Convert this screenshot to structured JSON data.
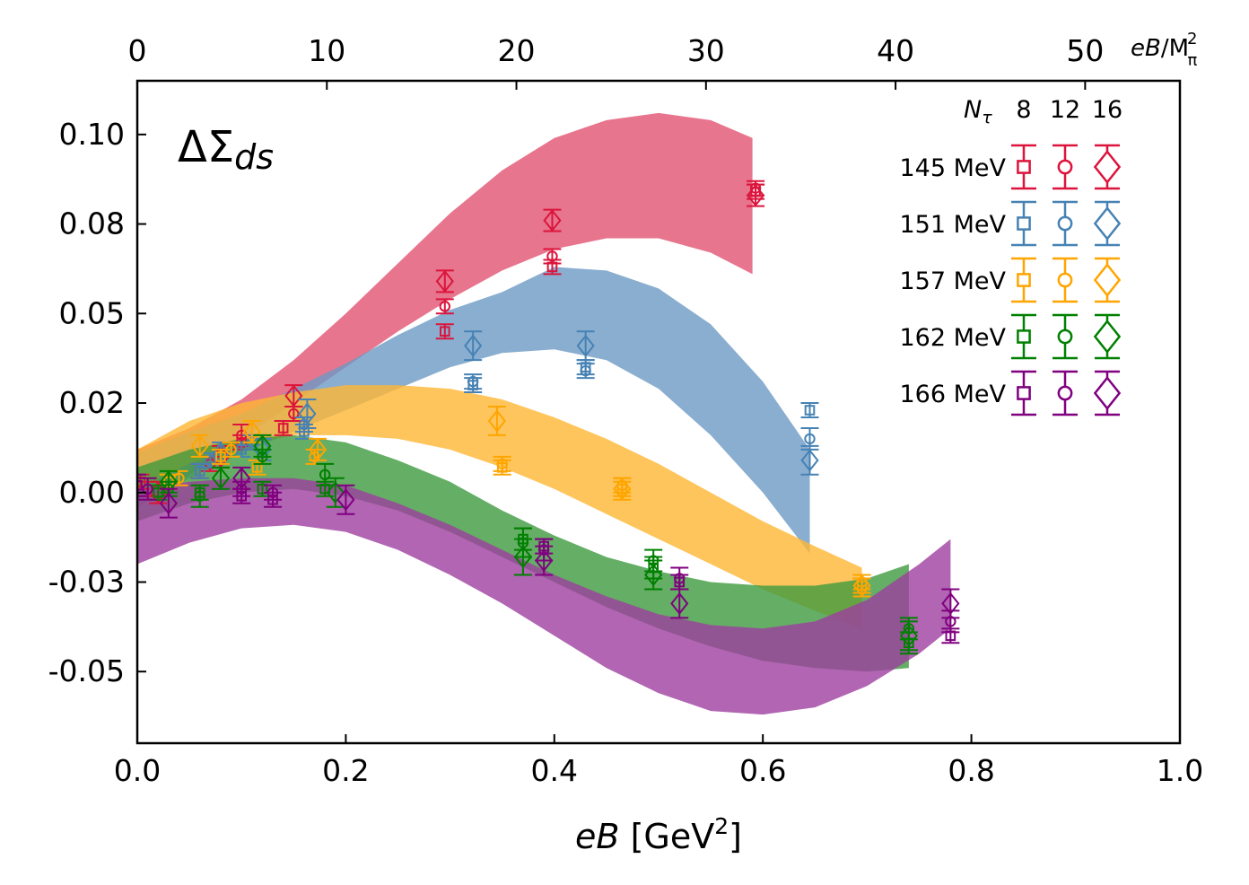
{
  "chart_data": {
    "type": "scatter",
    "title": "",
    "annotation": {
      "base": "ΔΣ",
      "sub": "ds"
    },
    "xlabel": {
      "italic": "eB",
      "rest": " [GeV",
      "sup": "2",
      "close": "]"
    },
    "top_xlabel": {
      "italic": "eB",
      "rest": "/M",
      "sup": "2",
      "sub": "π"
    },
    "xlim": [
      0,
      1.0
    ],
    "ylim": [
      -0.07,
      0.115
    ],
    "top_xlim": [
      0,
      55
    ],
    "x_ticks": [
      {
        "v": 0.0,
        "label": "0.0"
      },
      {
        "v": 0.2,
        "label": "0.2"
      },
      {
        "v": 0.4,
        "label": "0.4"
      },
      {
        "v": 0.6,
        "label": "0.6"
      },
      {
        "v": 0.8,
        "label": "0.8"
      },
      {
        "v": 1.0,
        "label": "1.0"
      }
    ],
    "y_ticks": [
      {
        "v": 0.1,
        "label": "0.10"
      },
      {
        "v": 0.075,
        "label": "0.08"
      },
      {
        "v": 0.05,
        "label": "0.05"
      },
      {
        "v": 0.025,
        "label": "0.02"
      },
      {
        "v": 0.0,
        "label": "0.00"
      },
      {
        "v": -0.025,
        "label": "-0.03"
      },
      {
        "v": -0.05,
        "label": "-0.05"
      }
    ],
    "top_ticks": [
      {
        "v": 0,
        "label": "0"
      },
      {
        "v": 10,
        "label": "10"
      },
      {
        "v": 20,
        "label": "20"
      },
      {
        "v": 30,
        "label": "30"
      },
      {
        "v": 40,
        "label": "40"
      },
      {
        "v": 50,
        "label": "50"
      }
    ],
    "legend": {
      "position": "top-right",
      "header": {
        "symbol": "N",
        "sub": "τ",
        "values": [
          "8",
          "12",
          "16"
        ]
      },
      "markers": [
        "square",
        "circle",
        "diamond"
      ]
    },
    "series": [
      {
        "name": "145 MeV",
        "color": "#dc143c",
        "band_color": "#e15270",
        "band": {
          "x": [
            0.0,
            0.05,
            0.1,
            0.15,
            0.2,
            0.25,
            0.3,
            0.35,
            0.4,
            0.45,
            0.5,
            0.55,
            0.59
          ],
          "lo": [
            -0.004,
            0.005,
            0.015,
            0.025,
            0.035,
            0.045,
            0.054,
            0.062,
            0.068,
            0.071,
            0.071,
            0.067,
            0.061
          ],
          "hi": [
            0.012,
            0.018,
            0.026,
            0.037,
            0.05,
            0.064,
            0.078,
            0.09,
            0.099,
            0.104,
            0.106,
            0.104,
            0.099
          ]
        },
        "points": [
          {
            "m": "square",
            "x": 0.003,
            "y": 0.003,
            "e": 0.002
          },
          {
            "m": "circle",
            "x": 0.01,
            "y": 0.001,
            "e": 0.002
          },
          {
            "m": "diamond",
            "x": 0.02,
            "y": 0.0,
            "e": 0.003
          },
          {
            "m": "square",
            "x": 0.06,
            "y": 0.006,
            "e": 0.002
          },
          {
            "m": "circle",
            "x": 0.07,
            "y": 0.008,
            "e": 0.002
          },
          {
            "m": "diamond",
            "x": 0.08,
            "y": 0.01,
            "e": 0.003
          },
          {
            "m": "square",
            "x": 0.1,
            "y": 0.014,
            "e": 0.002
          },
          {
            "m": "circle",
            "x": 0.1,
            "y": 0.016,
            "e": 0.003
          },
          {
            "m": "square",
            "x": 0.14,
            "y": 0.018,
            "e": 0.002
          },
          {
            "m": "circle",
            "x": 0.15,
            "y": 0.022,
            "e": 0.002
          },
          {
            "m": "diamond",
            "x": 0.15,
            "y": 0.027,
            "e": 0.003
          },
          {
            "m": "square",
            "x": 0.295,
            "y": 0.045,
            "e": 0.002
          },
          {
            "m": "circle",
            "x": 0.295,
            "y": 0.052,
            "e": 0.002
          },
          {
            "m": "diamond",
            "x": 0.295,
            "y": 0.059,
            "e": 0.003
          },
          {
            "m": "square",
            "x": 0.398,
            "y": 0.063,
            "e": 0.002
          },
          {
            "m": "circle",
            "x": 0.398,
            "y": 0.066,
            "e": 0.002
          },
          {
            "m": "diamond",
            "x": 0.398,
            "y": 0.076,
            "e": 0.003
          },
          {
            "m": "square",
            "x": 0.593,
            "y": 0.084,
            "e": 0.002
          },
          {
            "m": "circle",
            "x": 0.593,
            "y": 0.085,
            "e": 0.002
          },
          {
            "m": "diamond",
            "x": 0.593,
            "y": 0.083,
            "e": 0.003
          }
        ]
      },
      {
        "name": "151 MeV",
        "color": "#4682b4",
        "band_color": "#6d9ac4",
        "band": {
          "x": [
            0.0,
            0.05,
            0.1,
            0.15,
            0.2,
            0.25,
            0.3,
            0.35,
            0.4,
            0.45,
            0.5,
            0.55,
            0.6,
            0.645
          ],
          "lo": [
            -0.004,
            0.004,
            0.011,
            0.017,
            0.023,
            0.029,
            0.035,
            0.039,
            0.04,
            0.037,
            0.029,
            0.016,
            0.0,
            -0.017
          ],
          "hi": [
            0.011,
            0.017,
            0.022,
            0.029,
            0.036,
            0.044,
            0.051,
            0.056,
            0.063,
            0.062,
            0.057,
            0.047,
            0.031,
            0.012
          ]
        },
        "points": [
          {
            "m": "square",
            "x": 0.06,
            "y": 0.006,
            "e": 0.002
          },
          {
            "m": "circle",
            "x": 0.07,
            "y": 0.009,
            "e": 0.002
          },
          {
            "m": "diamond",
            "x": 0.08,
            "y": 0.011,
            "e": 0.003
          },
          {
            "m": "square",
            "x": 0.1,
            "y": 0.012,
            "e": 0.002
          },
          {
            "m": "circle",
            "x": 0.11,
            "y": 0.014,
            "e": 0.002
          },
          {
            "m": "diamond",
            "x": 0.12,
            "y": 0.012,
            "e": 0.003
          },
          {
            "m": "square",
            "x": 0.16,
            "y": 0.017,
            "e": 0.002
          },
          {
            "m": "circle",
            "x": 0.16,
            "y": 0.019,
            "e": 0.002
          },
          {
            "m": "diamond",
            "x": 0.163,
            "y": 0.022,
            "e": 0.004
          },
          {
            "m": "square",
            "x": 0.322,
            "y": 0.03,
            "e": 0.002
          },
          {
            "m": "circle",
            "x": 0.322,
            "y": 0.031,
            "e": 0.002
          },
          {
            "m": "diamond",
            "x": 0.322,
            "y": 0.041,
            "e": 0.004
          },
          {
            "m": "square",
            "x": 0.43,
            "y": 0.035,
            "e": 0.002
          },
          {
            "m": "circle",
            "x": 0.43,
            "y": 0.034,
            "e": 0.002
          },
          {
            "m": "diamond",
            "x": 0.43,
            "y": 0.041,
            "e": 0.004
          },
          {
            "m": "square",
            "x": 0.645,
            "y": 0.023,
            "e": 0.002
          },
          {
            "m": "circle",
            "x": 0.645,
            "y": 0.015,
            "e": 0.003
          },
          {
            "m": "diamond",
            "x": 0.645,
            "y": 0.009,
            "e": 0.004
          }
        ]
      },
      {
        "name": "157 MeV",
        "color": "#ffa500",
        "band_color": "#feb733",
        "band": {
          "x": [
            0.0,
            0.05,
            0.1,
            0.15,
            0.2,
            0.25,
            0.3,
            0.35,
            0.4,
            0.45,
            0.5,
            0.55,
            0.6,
            0.65,
            0.695
          ],
          "lo": [
            0.001,
            0.008,
            0.013,
            0.016,
            0.016,
            0.015,
            0.012,
            0.007,
            0.001,
            -0.006,
            -0.013,
            -0.02,
            -0.027,
            -0.033,
            -0.038
          ],
          "hi": [
            0.012,
            0.02,
            0.025,
            0.028,
            0.03,
            0.03,
            0.029,
            0.026,
            0.021,
            0.015,
            0.008,
            0.0,
            -0.008,
            -0.015,
            -0.021
          ]
        },
        "points": [
          {
            "m": "square",
            "x": 0.03,
            "y": 0.003,
            "e": 0.002
          },
          {
            "m": "circle",
            "x": 0.04,
            "y": 0.004,
            "e": 0.002
          },
          {
            "m": "diamond",
            "x": 0.06,
            "y": 0.013,
            "e": 0.003
          },
          {
            "m": "square",
            "x": 0.08,
            "y": 0.01,
            "e": 0.002
          },
          {
            "m": "circle",
            "x": 0.09,
            "y": 0.012,
            "e": 0.002
          },
          {
            "m": "diamond",
            "x": 0.11,
            "y": 0.017,
            "e": 0.003
          },
          {
            "m": "square",
            "x": 0.115,
            "y": 0.007,
            "e": 0.002
          },
          {
            "m": "circle",
            "x": 0.17,
            "y": 0.01,
            "e": 0.002
          },
          {
            "m": "diamond",
            "x": 0.173,
            "y": 0.012,
            "e": 0.003
          },
          {
            "m": "square",
            "x": 0.35,
            "y": 0.007,
            "e": 0.002
          },
          {
            "m": "circle",
            "x": 0.35,
            "y": 0.008,
            "e": 0.002
          },
          {
            "m": "diamond",
            "x": 0.345,
            "y": 0.02,
            "e": 0.004
          },
          {
            "m": "square",
            "x": 0.465,
            "y": 0.001,
            "e": 0.002
          },
          {
            "m": "circle",
            "x": 0.465,
            "y": 0.002,
            "e": 0.002
          },
          {
            "m": "diamond",
            "x": 0.465,
            "y": 0.001,
            "e": 0.003
          },
          {
            "m": "square",
            "x": 0.695,
            "y": -0.026,
            "e": 0.002
          },
          {
            "m": "circle",
            "x": 0.695,
            "y": -0.025,
            "e": 0.002
          },
          {
            "m": "diamond",
            "x": 0.695,
            "y": -0.026,
            "e": 0.003
          }
        ]
      },
      {
        "name": "162 MeV",
        "color": "#008000",
        "band_color": "#3f9a3f",
        "band": {
          "x": [
            0.0,
            0.05,
            0.1,
            0.15,
            0.2,
            0.25,
            0.3,
            0.35,
            0.4,
            0.45,
            0.5,
            0.55,
            0.6,
            0.65,
            0.7,
            0.74
          ],
          "lo": [
            -0.008,
            -0.003,
            0.0,
            0.001,
            -0.001,
            -0.005,
            -0.011,
            -0.018,
            -0.025,
            -0.032,
            -0.038,
            -0.043,
            -0.047,
            -0.049,
            -0.05,
            -0.049
          ],
          "hi": [
            0.007,
            0.012,
            0.015,
            0.016,
            0.014,
            0.009,
            0.003,
            -0.005,
            -0.012,
            -0.018,
            -0.022,
            -0.025,
            -0.026,
            -0.026,
            -0.024,
            -0.02
          ]
        },
        "points": [
          {
            "m": "square",
            "x": 0.02,
            "y": 0.0,
            "e": 0.002
          },
          {
            "m": "circle",
            "x": 0.03,
            "y": 0.001,
            "e": 0.002
          },
          {
            "m": "diamond",
            "x": 0.03,
            "y": 0.003,
            "e": 0.003
          },
          {
            "m": "square",
            "x": 0.06,
            "y": 0.0,
            "e": 0.002
          },
          {
            "m": "circle",
            "x": 0.06,
            "y": -0.001,
            "e": 0.003
          },
          {
            "m": "diamond",
            "x": 0.08,
            "y": 0.004,
            "e": 0.003
          },
          {
            "m": "square",
            "x": 0.12,
            "y": 0.001,
            "e": 0.002
          },
          {
            "m": "circle",
            "x": 0.12,
            "y": 0.01,
            "e": 0.002
          },
          {
            "m": "diamond",
            "x": 0.12,
            "y": 0.013,
            "e": 0.003
          },
          {
            "m": "square",
            "x": 0.18,
            "y": 0.001,
            "e": 0.002
          },
          {
            "m": "circle",
            "x": 0.18,
            "y": 0.005,
            "e": 0.003
          },
          {
            "m": "diamond",
            "x": 0.19,
            "y": 0.0,
            "e": 0.004
          },
          {
            "m": "square",
            "x": 0.37,
            "y": -0.013,
            "e": 0.003
          },
          {
            "m": "circle",
            "x": 0.37,
            "y": -0.014,
            "e": 0.004
          },
          {
            "m": "diamond",
            "x": 0.37,
            "y": -0.018,
            "e": 0.005
          },
          {
            "m": "square",
            "x": 0.495,
            "y": -0.021,
            "e": 0.003
          },
          {
            "m": "circle",
            "x": 0.495,
            "y": -0.019,
            "e": 0.003
          },
          {
            "m": "diamond",
            "x": 0.495,
            "y": -0.023,
            "e": 0.004
          },
          {
            "m": "square",
            "x": 0.74,
            "y": -0.042,
            "e": 0.003
          },
          {
            "m": "circle",
            "x": 0.74,
            "y": -0.038,
            "e": 0.003
          },
          {
            "m": "diamond",
            "x": 0.74,
            "y": -0.04,
            "e": 0.004
          }
        ]
      },
      {
        "name": "166 MeV",
        "color": "#800080",
        "band_color": "#9e3f9f",
        "band": {
          "x": [
            0.0,
            0.05,
            0.1,
            0.15,
            0.2,
            0.25,
            0.3,
            0.35,
            0.4,
            0.45,
            0.5,
            0.55,
            0.6,
            0.65,
            0.7,
            0.75,
            0.78
          ],
          "lo": [
            -0.02,
            -0.014,
            -0.01,
            -0.009,
            -0.011,
            -0.016,
            -0.023,
            -0.031,
            -0.04,
            -0.049,
            -0.056,
            -0.061,
            -0.062,
            -0.06,
            -0.054,
            -0.045,
            -0.038
          ],
          "hi": [
            0.001,
            0.003,
            0.004,
            0.004,
            0.002,
            -0.003,
            -0.009,
            -0.016,
            -0.023,
            -0.029,
            -0.034,
            -0.037,
            -0.038,
            -0.036,
            -0.03,
            -0.02,
            -0.013
          ]
        },
        "points": [
          {
            "m": "square",
            "x": 0.0,
            "y": 0.002,
            "e": 0.003
          },
          {
            "m": "circle",
            "x": 0.01,
            "y": 0.001,
            "e": 0.003
          },
          {
            "m": "diamond",
            "x": 0.03,
            "y": -0.003,
            "e": 0.004
          },
          {
            "m": "square",
            "x": 0.1,
            "y": -0.001,
            "e": 0.002
          },
          {
            "m": "circle",
            "x": 0.1,
            "y": 0.001,
            "e": 0.002
          },
          {
            "m": "diamond",
            "x": 0.1,
            "y": 0.004,
            "e": 0.003
          },
          {
            "m": "square",
            "x": 0.13,
            "y": -0.002,
            "e": 0.002
          },
          {
            "m": "circle",
            "x": 0.13,
            "y": 0.0,
            "e": 0.002
          },
          {
            "m": "diamond",
            "x": 0.2,
            "y": -0.002,
            "e": 0.004
          },
          {
            "m": "square",
            "x": 0.39,
            "y": -0.015,
            "e": 0.002
          },
          {
            "m": "circle",
            "x": 0.39,
            "y": -0.016,
            "e": 0.003
          },
          {
            "m": "diamond",
            "x": 0.39,
            "y": -0.019,
            "e": 0.004
          },
          {
            "m": "square",
            "x": 0.52,
            "y": -0.025,
            "e": 0.002
          },
          {
            "m": "circle",
            "x": 0.52,
            "y": -0.024,
            "e": 0.003
          },
          {
            "m": "diamond",
            "x": 0.52,
            "y": -0.031,
            "e": 0.004
          },
          {
            "m": "square",
            "x": 0.78,
            "y": -0.04,
            "e": 0.002
          },
          {
            "m": "circle",
            "x": 0.78,
            "y": -0.036,
            "e": 0.003
          },
          {
            "m": "diamond",
            "x": 0.78,
            "y": -0.031,
            "e": 0.004
          }
        ]
      }
    ]
  }
}
